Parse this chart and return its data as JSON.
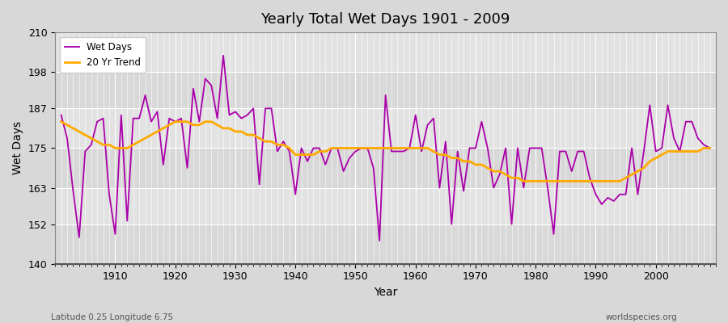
{
  "title": "Yearly Total Wet Days 1901 - 2009",
  "xlabel": "Year",
  "ylabel": "Wet Days",
  "footnote_left": "Latitude 0.25 Longitude 6.75",
  "footnote_right": "worldspecies.org",
  "ylim": [
    140,
    210
  ],
  "yticks": [
    140,
    152,
    163,
    175,
    187,
    198,
    210
  ],
  "bg_color": "#dcdcdc",
  "plot_bg": "#e8e8e8",
  "line_color": "#aa00aa",
  "trend_color": "#ffaa00",
  "years": [
    1901,
    1902,
    1903,
    1904,
    1905,
    1906,
    1907,
    1908,
    1909,
    1910,
    1911,
    1912,
    1913,
    1914,
    1915,
    1916,
    1917,
    1918,
    1919,
    1920,
    1921,
    1922,
    1923,
    1924,
    1925,
    1926,
    1927,
    1928,
    1929,
    1930,
    1931,
    1932,
    1933,
    1934,
    1935,
    1936,
    1937,
    1938,
    1939,
    1940,
    1941,
    1942,
    1943,
    1944,
    1945,
    1946,
    1947,
    1948,
    1949,
    1950,
    1951,
    1952,
    1953,
    1954,
    1955,
    1956,
    1957,
    1958,
    1959,
    1960,
    1961,
    1962,
    1963,
    1964,
    1965,
    1966,
    1967,
    1968,
    1969,
    1970,
    1971,
    1972,
    1973,
    1974,
    1975,
    1976,
    1977,
    1978,
    1979,
    1980,
    1981,
    1982,
    1983,
    1984,
    1985,
    1986,
    1987,
    1988,
    1989,
    1990,
    1991,
    1992,
    1993,
    1994,
    1995,
    1996,
    1997,
    1998,
    1999,
    2000,
    2001,
    2002,
    2003,
    2004,
    2005,
    2006,
    2007,
    2008,
    2009
  ],
  "wet_days": [
    185,
    178,
    162,
    148,
    174,
    176,
    183,
    184,
    161,
    149,
    185,
    153,
    184,
    184,
    191,
    183,
    186,
    170,
    184,
    183,
    184,
    169,
    193,
    183,
    196,
    194,
    184,
    203,
    185,
    186,
    184,
    185,
    187,
    164,
    187,
    187,
    174,
    177,
    174,
    161,
    175,
    171,
    175,
    175,
    170,
    175,
    175,
    168,
    172,
    174,
    175,
    175,
    169,
    147,
    191,
    174,
    174,
    174,
    175,
    185,
    174,
    182,
    184,
    163,
    177,
    152,
    174,
    162,
    175,
    175,
    183,
    175,
    163,
    167,
    175,
    152,
    175,
    163,
    175,
    175,
    175,
    163,
    149,
    174,
    174,
    168,
    174,
    174,
    166,
    161,
    158,
    160,
    159,
    161,
    161,
    175,
    161,
    174,
    188,
    174,
    175,
    188,
    178,
    174,
    183,
    183,
    178,
    176,
    175
  ],
  "trend": [
    183,
    182,
    181,
    180,
    179,
    178,
    177,
    176,
    176,
    175,
    175,
    175,
    176,
    177,
    178,
    179,
    180,
    181,
    182,
    183,
    183,
    183,
    182,
    182,
    183,
    183,
    182,
    181,
    181,
    180,
    180,
    179,
    179,
    178,
    177,
    177,
    176,
    176,
    175,
    173,
    173,
    173,
    173,
    174,
    174,
    175,
    175,
    175,
    175,
    175,
    175,
    175,
    175,
    175,
    175,
    175,
    175,
    175,
    175,
    175,
    175,
    175,
    174,
    173,
    173,
    172,
    172,
    171,
    171,
    170,
    170,
    169,
    168,
    168,
    167,
    166,
    166,
    165,
    165,
    165,
    165,
    165,
    165,
    165,
    165,
    165,
    165,
    165,
    165,
    165,
    165,
    165,
    165,
    165,
    166,
    167,
    168,
    169,
    171,
    172,
    173,
    174,
    174,
    174,
    174,
    174,
    174,
    175,
    175
  ]
}
